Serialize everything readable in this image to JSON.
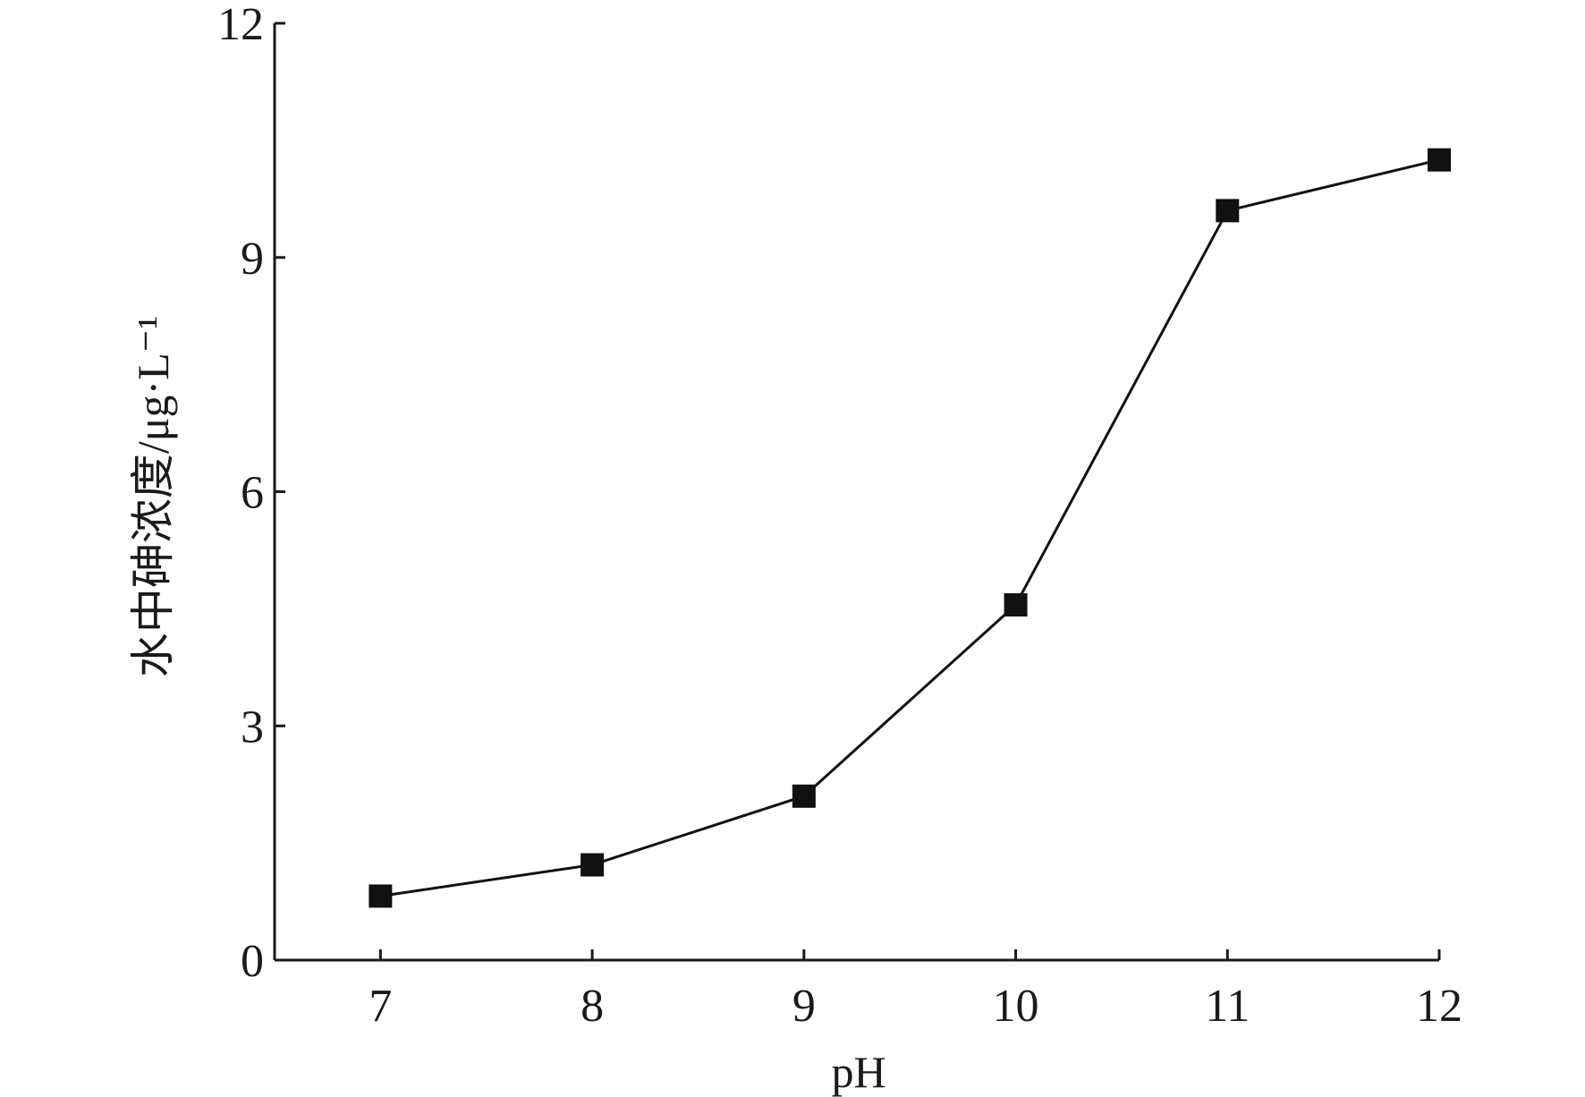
{
  "chart_data": {
    "type": "line",
    "title": "",
    "xlabel": "pH",
    "ylabel": "水中砷浓度/μg·L⁻¹",
    "x": [
      7,
      8,
      9,
      10,
      11,
      12
    ],
    "xticks": [
      "7",
      "8",
      "9",
      "10",
      "11",
      "12"
    ],
    "yticks": [
      "0",
      "3",
      "6",
      "9",
      "12"
    ],
    "ylim": [
      0,
      12
    ],
    "xlim": [
      6.5,
      12
    ],
    "grid": false,
    "marker": "square",
    "series": [
      {
        "name": "",
        "values": [
          0.82,
          1.22,
          2.1,
          4.55,
          9.6,
          10.25
        ]
      }
    ],
    "colors": {
      "line": "#111111",
      "marker": "#111111",
      "axis": "#1a1a1a"
    }
  }
}
